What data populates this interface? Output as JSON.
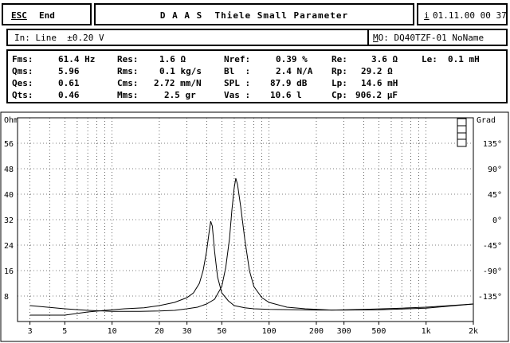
{
  "header": {
    "esc_key": "ESC",
    "esc_label": "End",
    "title": "D A A S  Thiele Small Parameter",
    "info_key": "i",
    "datetime": "01.11.00 00 37"
  },
  "input_bar": {
    "input": "In: Line  ±0.20 V",
    "model": "DQ40TZF-01 NoName",
    "model_prefix": "M",
    "model_suffix": "O:"
  },
  "params": {
    "col1": [
      {
        "label": "Fms:",
        "value": "61.4 Hz"
      },
      {
        "label": "Qms:",
        "value": "5.96"
      },
      {
        "label": "Qes:",
        "value": "0.61"
      },
      {
        "label": "Qts:",
        "value": "0.46"
      }
    ],
    "col2": [
      {
        "label": "Res:",
        "value": "1.6 Ω"
      },
      {
        "label": "Rms:",
        "value": "0.1 kg/s"
      },
      {
        "label": "Cms:",
        "value": "2.72 mm/N"
      },
      {
        "label": "Mms:",
        "value": "2.5 gr"
      }
    ],
    "col3": [
      {
        "label": "Nref:",
        "value": "0.39 %"
      },
      {
        "label": "Bl  :",
        "value": "2.4 N/A"
      },
      {
        "label": "SPL :",
        "value": "87.9 dB"
      },
      {
        "label": "Vas :",
        "value": "10.6 l"
      }
    ],
    "col4": [
      {
        "label": "Re:",
        "value": "3.6 Ω"
      },
      {
        "label": "Rp:",
        "value": "29.2 Ω"
      },
      {
        "label": "Lp:",
        "value": "14.6 mH"
      },
      {
        "label": "Cp:",
        "value": "906.2 µF"
      }
    ],
    "col5": [
      {
        "label": "Le:",
        "value": "0.1 mH"
      }
    ]
  },
  "chart_data": {
    "type": "line",
    "left_axis_label": "Ohm",
    "right_axis_label": "Grad",
    "left_ticks": [
      "56",
      "48",
      "40",
      "32",
      "24",
      "16",
      "8"
    ],
    "left_tick_values": [
      56,
      48,
      40,
      32,
      24,
      16,
      8
    ],
    "right_ticks": [
      "135°",
      "90°",
      "45°",
      "0°",
      "-45°",
      "-90°",
      "-135°"
    ],
    "x_ticks": [
      "3",
      "5",
      "10",
      "20",
      "30",
      "50",
      "100",
      "200",
      "300",
      "500",
      "1k",
      "2k"
    ],
    "x_tick_values": [
      3,
      5,
      10,
      20,
      30,
      50,
      100,
      200,
      300,
      500,
      1000,
      2000
    ],
    "xlim": [
      2.5,
      2000
    ],
    "ylim": [
      0,
      64
    ],
    "x_scale": "log",
    "grid": true,
    "side_icon": "stack-icon",
    "series": [
      {
        "x": [
          3,
          5,
          7,
          9,
          12,
          16,
          20,
          25,
          30,
          33,
          36,
          38,
          40,
          41.5,
          42.5,
          43.5,
          45,
          47,
          50,
          55,
          60,
          70,
          80,
          100,
          150,
          200,
          300,
          500,
          1000,
          2000
        ],
        "y": [
          2,
          2,
          3,
          3.5,
          4,
          4.3,
          5,
          6,
          7.5,
          9,
          12,
          16,
          22,
          28,
          31.5,
          30,
          22,
          14,
          9,
          6.5,
          5,
          4.3,
          4,
          3.8,
          3.7,
          3.6,
          3.6,
          3.7,
          4.2,
          5.5
        ]
      },
      {
        "x": [
          3,
          5,
          7,
          10,
          15,
          20,
          25,
          30,
          35,
          40,
          45,
          50,
          53,
          56,
          58,
          60,
          61.4,
          63,
          66,
          70,
          75,
          80,
          90,
          100,
          130,
          170,
          250,
          400,
          700,
          1000,
          2000
        ],
        "y": [
          5,
          4,
          3.5,
          3.2,
          3.2,
          3.3,
          3.5,
          4,
          4.5,
          5.5,
          7,
          11,
          17,
          26,
          35,
          42,
          45,
          43,
          36,
          26,
          16,
          11,
          7.5,
          6,
          4.5,
          4,
          3.6,
          3.8,
          4.2,
          4.5,
          5.5
        ]
      }
    ]
  }
}
